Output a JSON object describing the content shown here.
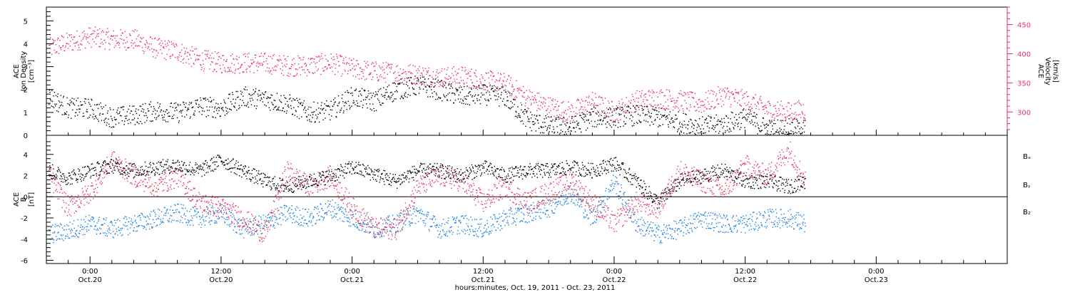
{
  "colors": {
    "black": "#000000",
    "red": "#e8335d",
    "blue": "#1a7fe0"
  },
  "xaxis": {
    "title": "hours:minutes, Oct. 19, 2011 - Oct. 23, 2011",
    "range_hours": [
      -4,
      84
    ],
    "ticks": [
      {
        "h": 0,
        "time": "0:00",
        "date": "Oct.20"
      },
      {
        "h": 12,
        "time": "12:00",
        "date": "Oct.20"
      },
      {
        "h": 24,
        "time": "0:00",
        "date": "Oct.21"
      },
      {
        "h": 36,
        "time": "12:00",
        "date": "Oct.21"
      },
      {
        "h": 48,
        "time": "0:00",
        "date": "Oct.22"
      },
      {
        "h": 60,
        "time": "12:00",
        "date": "Oct.22"
      },
      {
        "h": 72,
        "time": "0:00",
        "date": "Oct.23"
      }
    ]
  },
  "panel1": {
    "label_line1": "ACE",
    "label_line2": "Ion Density",
    "label_line3": "[cm⁻³]",
    "right_label_line1": "ACE",
    "right_label_line2": "Velocity",
    "right_label_line3": "[km/s]"
  },
  "panel2": {
    "label_line1": "ACE",
    "label_line2": "B",
    "label_line3": "[nT]",
    "legend": [
      {
        "name": "Bₓ",
        "color": "#000000"
      },
      {
        "name": "Bᵧ",
        "color": "#1a7fe0"
      },
      {
        "name": "B₂",
        "color": "#e8335d"
      }
    ]
  },
  "chart_data": [
    {
      "type": "scatter",
      "title": "",
      "xlabel": "hours:minutes, Oct. 19, 2011 - Oct. 23, 2011",
      "ylabel": "ACE Ion Density [cm-3]",
      "ylim": [
        0,
        5.6
      ],
      "y_ticks": [
        0,
        1,
        2,
        3,
        4,
        5
      ],
      "y2label": "ACE Velocity [km/s]",
      "y2lim": [
        260,
        480
      ],
      "y2_ticks": [
        300,
        350,
        400,
        450
      ],
      "series": [
        {
          "name": "Ion Density",
          "axis": "left",
          "color": "#000000",
          "x": [
            -3.8,
            -2,
            0,
            2,
            4,
            6,
            8,
            10,
            12,
            14,
            16,
            18,
            20,
            22,
            24,
            26,
            28,
            30,
            32,
            34,
            36,
            38,
            40,
            42,
            44,
            46,
            48,
            50,
            52,
            54,
            56,
            58,
            60,
            62,
            64,
            65.5
          ],
          "y": [
            1.7,
            1.2,
            1.2,
            0.8,
            0.9,
            1.1,
            1.0,
            1.3,
            1.2,
            1.7,
            1.6,
            1.4,
            1.0,
            1.1,
            1.7,
            1.5,
            2.0,
            2.2,
            2.0,
            1.7,
            1.8,
            1.7,
            0.7,
            0.4,
            0.4,
            0.8,
            0.8,
            0.9,
            0.8,
            0.6,
            0.4,
            0.5,
            0.8,
            0.3,
            0.3,
            0.3
          ]
        },
        {
          "name": "Velocity",
          "axis": "right",
          "color": "#e8335d",
          "x": [
            -3.8,
            -2,
            0,
            2,
            4,
            6,
            8,
            10,
            12,
            14,
            16,
            18,
            20,
            22,
            24,
            26,
            28,
            30,
            32,
            34,
            36,
            38,
            40,
            42,
            44,
            46,
            48,
            50,
            52,
            54,
            56,
            58,
            60,
            62,
            64,
            65.5
          ],
          "y": [
            410,
            420,
            430,
            425,
            425,
            410,
            405,
            390,
            385,
            385,
            385,
            380,
            380,
            385,
            375,
            370,
            368,
            365,
            360,
            362,
            355,
            350,
            325,
            310,
            300,
            318,
            300,
            320,
            325,
            320,
            315,
            330,
            320,
            305,
            300,
            305
          ]
        }
      ]
    },
    {
      "type": "scatter",
      "title": "",
      "xlabel": "hours:minutes, Oct. 19, 2011 - Oct. 23, 2011",
      "ylabel": "ACE B [nT]",
      "ylim": [
        -6.3,
        5.8
      ],
      "y_ticks": [
        -6,
        -4,
        -2,
        0,
        2,
        4
      ],
      "series": [
        {
          "name": "Bx",
          "color": "#000000",
          "x": [
            -3.8,
            -2,
            0,
            2,
            4,
            6,
            8,
            10,
            12,
            14,
            16,
            18,
            20,
            22,
            24,
            26,
            28,
            30,
            32,
            34,
            36,
            38,
            40,
            42,
            44,
            46,
            48,
            50,
            52,
            54,
            56,
            58,
            60,
            62,
            64,
            65.5
          ],
          "y": [
            2.5,
            1.8,
            2.5,
            3.0,
            2.5,
            2.8,
            3.0,
            2.5,
            3.5,
            2.5,
            1.5,
            1.0,
            1.5,
            2.0,
            2.8,
            2.2,
            1.5,
            2.5,
            2.5,
            2.0,
            2.8,
            2.0,
            2.5,
            2.5,
            2.8,
            2.5,
            3.2,
            1.5,
            -0.5,
            1.5,
            2.0,
            2.5,
            1.5,
            1.5,
            1.0,
            1.5
          ]
        },
        {
          "name": "By",
          "color": "#1a7fe0",
          "x": [
            -3.8,
            -2,
            0,
            2,
            4,
            6,
            8,
            10,
            12,
            14,
            16,
            18,
            20,
            22,
            24,
            26,
            28,
            30,
            32,
            34,
            36,
            38,
            40,
            42,
            44,
            46,
            48,
            50,
            52,
            54,
            56,
            58,
            60,
            62,
            64,
            65.5
          ],
          "y": [
            -3.5,
            -3.2,
            -2.5,
            -3.0,
            -2.5,
            -2.0,
            -1.5,
            -2.0,
            -1.5,
            -3.0,
            -2.5,
            -1.5,
            -2.0,
            -1.0,
            -2.0,
            -3.0,
            -2.5,
            -1.5,
            -3.0,
            -2.5,
            -3.0,
            -2.0,
            -1.5,
            -1.0,
            0.5,
            -2.0,
            1.5,
            -2.5,
            -3.5,
            -3.0,
            -2.0,
            -2.5,
            -2.5,
            -2.0,
            -2.0,
            -2.5
          ]
        },
        {
          "name": "Bz",
          "color": "#e8335d",
          "x": [
            -3.8,
            -2,
            0,
            2,
            4,
            6,
            8,
            10,
            12,
            14,
            16,
            18,
            20,
            22,
            24,
            26,
            28,
            30,
            32,
            34,
            36,
            38,
            40,
            42,
            44,
            46,
            48,
            50,
            52,
            54,
            56,
            58,
            60,
            62,
            64,
            65.5
          ],
          "y": [
            2.0,
            -1.0,
            0.5,
            3.5,
            2.0,
            1.0,
            2.0,
            -0.5,
            -1.0,
            -2.0,
            -3.5,
            2.5,
            1.0,
            2.0,
            -1.0,
            -3.0,
            -3.0,
            1.0,
            2.0,
            1.5,
            -0.5,
            1.0,
            -0.5,
            0.5,
            1.5,
            -0.5,
            -2.5,
            -0.5,
            -1.0,
            2.5,
            1.5,
            0.5,
            3.0,
            2.0,
            4.5,
            1.5
          ]
        }
      ]
    }
  ]
}
